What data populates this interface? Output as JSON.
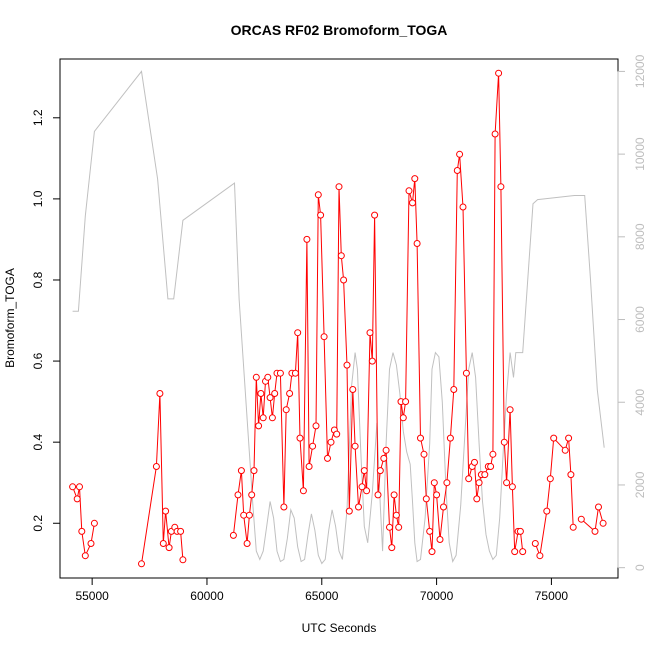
{
  "chart_data": {
    "type": "line",
    "title": "ORCAS RF02 Bromoform_TOGA",
    "xlabel": "UTC Seconds",
    "ylabel": "Bromoform_TOGA",
    "xlim": [
      53600,
      77900
    ],
    "ylim": [
      0.065,
      1.345
    ],
    "y2lim": [
      -250,
      12300
    ],
    "x_ticks": [
      55000,
      60000,
      65000,
      70000,
      75000
    ],
    "y_ticks": [
      0.2,
      0.4,
      0.6,
      0.8,
      1.0,
      1.2
    ],
    "y2_ticks": [
      0,
      2000,
      4000,
      6000,
      8000,
      10000,
      12000
    ],
    "grid": false,
    "legend": "none",
    "colors": {
      "bromoform": "#ff0000",
      "altitude": "#c0c0c0",
      "axis": "#000000",
      "right_axis": "#bdbdbd"
    },
    "series": [
      {
        "color": "#ff0000",
        "axis": "left",
        "marker": "open-circle",
        "segments": [
          [
            [
              54150,
              0.29
            ],
            [
              54350,
              0.26
            ],
            [
              54450,
              0.29
            ],
            [
              54550,
              0.18
            ],
            [
              54700,
              0.12
            ],
            [
              54950,
              0.15
            ],
            [
              55100,
              0.2
            ]
          ],
          [
            [
              57150,
              0.1
            ],
            [
              57800,
              0.34
            ],
            [
              57950,
              0.52
            ],
            [
              58100,
              0.15
            ],
            [
              58200,
              0.23
            ],
            [
              58350,
              0.14
            ],
            [
              58450,
              0.18
            ],
            [
              58600,
              0.19
            ],
            [
              58700,
              0.18
            ],
            [
              58850,
              0.18
            ],
            [
              58950,
              0.11
            ]
          ],
          [
            [
              61150,
              0.17
            ],
            [
              61350,
              0.27
            ],
            [
              61500,
              0.33
            ],
            [
              61600,
              0.22
            ],
            [
              61750,
              0.15
            ],
            [
              61850,
              0.22
            ],
            [
              61950,
              0.27
            ],
            [
              62050,
              0.33
            ],
            [
              62150,
              0.56
            ],
            [
              62250,
              0.44
            ],
            [
              62350,
              0.52
            ],
            [
              62450,
              0.46
            ],
            [
              62550,
              0.55
            ],
            [
              62650,
              0.56
            ],
            [
              62750,
              0.51
            ],
            [
              62850,
              0.46
            ],
            [
              62950,
              0.52
            ],
            [
              63050,
              0.57
            ],
            [
              63200,
              0.57
            ],
            [
              63350,
              0.24
            ],
            [
              63450,
              0.48
            ],
            [
              63600,
              0.52
            ],
            [
              63700,
              0.57
            ],
            [
              63850,
              0.57
            ],
            [
              63950,
              0.67
            ],
            [
              64050,
              0.41
            ],
            [
              64200,
              0.28
            ],
            [
              64350,
              0.9
            ],
            [
              64450,
              0.34
            ],
            [
              64600,
              0.39
            ],
            [
              64750,
              0.44
            ],
            [
              64850,
              1.01
            ],
            [
              64950,
              0.96
            ],
            [
              65100,
              0.66
            ],
            [
              65250,
              0.36
            ],
            [
              65400,
              0.4
            ],
            [
              65550,
              0.43
            ],
            [
              65650,
              0.42
            ],
            [
              65750,
              1.03
            ],
            [
              65850,
              0.86
            ],
            [
              65950,
              0.8
            ],
            [
              66100,
              0.59
            ],
            [
              66200,
              0.23
            ],
            [
              66350,
              0.53
            ],
            [
              66450,
              0.39
            ],
            [
              66600,
              0.24
            ],
            [
              66750,
              0.29
            ],
            [
              66850,
              0.33
            ],
            [
              66950,
              0.28
            ],
            [
              67100,
              0.67
            ],
            [
              67200,
              0.6
            ],
            [
              67300,
              0.96
            ],
            [
              67450,
              0.27
            ],
            [
              67550,
              0.33
            ],
            [
              67700,
              0.36
            ],
            [
              67800,
              0.38
            ],
            [
              67950,
              0.19
            ],
            [
              68050,
              0.14
            ],
            [
              68150,
              0.27
            ],
            [
              68250,
              0.22
            ],
            [
              68350,
              0.19
            ],
            [
              68450,
              0.5
            ],
            [
              68550,
              0.46
            ],
            [
              68650,
              0.5
            ],
            [
              68800,
              1.02
            ],
            [
              68950,
              0.99
            ],
            [
              69050,
              1.05
            ],
            [
              69150,
              0.89
            ],
            [
              69300,
              0.41
            ],
            [
              69450,
              0.37
            ],
            [
              69550,
              0.26
            ],
            [
              69700,
              0.18
            ],
            [
              69800,
              0.13
            ],
            [
              69900,
              0.3
            ],
            [
              70000,
              0.27
            ],
            [
              70150,
              0.16
            ],
            [
              70300,
              0.24
            ],
            [
              70450,
              0.3
            ],
            [
              70600,
              0.41
            ],
            [
              70750,
              0.53
            ],
            [
              70900,
              1.07
            ],
            [
              71000,
              1.11
            ],
            [
              71150,
              0.98
            ],
            [
              71300,
              0.57
            ],
            [
              71400,
              0.31
            ],
            [
              71550,
              0.34
            ],
            [
              71650,
              0.35
            ],
            [
              71750,
              0.26
            ],
            [
              71850,
              0.3
            ],
            [
              71950,
              0.32
            ],
            [
              72100,
              0.32
            ],
            [
              72250,
              0.34
            ],
            [
              72350,
              0.34
            ],
            [
              72450,
              0.37
            ],
            [
              72550,
              1.16
            ],
            [
              72700,
              1.31
            ],
            [
              72800,
              1.03
            ],
            [
              72950,
              0.4
            ],
            [
              73050,
              0.3
            ],
            [
              73200,
              0.48
            ],
            [
              73300,
              0.29
            ],
            [
              73400,
              0.13
            ],
            [
              73550,
              0.18
            ],
            [
              73650,
              0.18
            ],
            [
              73750,
              0.13
            ]
          ],
          [
            [
              74300,
              0.15
            ],
            [
              74500,
              0.12
            ],
            [
              74800,
              0.23
            ],
            [
              74950,
              0.31
            ],
            [
              75100,
              0.41
            ],
            [
              75600,
              0.38
            ],
            [
              75750,
              0.41
            ],
            [
              75850,
              0.32
            ],
            [
              75950,
              0.19
            ]
          ],
          [
            [
              76300,
              0.21
            ],
            [
              76900,
              0.18
            ],
            [
              77050,
              0.24
            ],
            [
              77250,
              0.2
            ]
          ]
        ]
      },
      {
        "color": "#c0c0c0",
        "axis": "right",
        "marker": "none",
        "points": [
          [
            54150,
            6200
          ],
          [
            54400,
            6200
          ],
          [
            54700,
            8500
          ],
          [
            55100,
            10550
          ],
          [
            57150,
            12000
          ],
          [
            57850,
            9400
          ],
          [
            58300,
            6500
          ],
          [
            58550,
            6500
          ],
          [
            58950,
            8400
          ],
          [
            61200,
            9300
          ],
          [
            61400,
            6500
          ],
          [
            61700,
            4000
          ],
          [
            62000,
            1500
          ],
          [
            62150,
            400
          ],
          [
            62300,
            200
          ],
          [
            62450,
            400
          ],
          [
            62600,
            1000
          ],
          [
            62750,
            1600
          ],
          [
            62900,
            1200
          ],
          [
            63050,
            400
          ],
          [
            63200,
            150
          ],
          [
            63350,
            200
          ],
          [
            63500,
            700
          ],
          [
            63650,
            1400
          ],
          [
            63800,
            1200
          ],
          [
            63950,
            500
          ],
          [
            64100,
            150
          ],
          [
            64250,
            200
          ],
          [
            64400,
            800
          ],
          [
            64550,
            1300
          ],
          [
            64700,
            900
          ],
          [
            64850,
            300
          ],
          [
            65000,
            100
          ],
          [
            65150,
            200
          ],
          [
            65300,
            900
          ],
          [
            65450,
            1400
          ],
          [
            65600,
            1000
          ],
          [
            65750,
            400
          ],
          [
            65900,
            200
          ],
          [
            66100,
            1400
          ],
          [
            66300,
            4400
          ],
          [
            66450,
            5200
          ],
          [
            66550,
            4800
          ],
          [
            66700,
            2800
          ],
          [
            66850,
            1000
          ],
          [
            67000,
            600
          ],
          [
            67200,
            1800
          ],
          [
            67400,
            3500
          ],
          [
            67550,
            1500
          ],
          [
            67650,
            400
          ],
          [
            67800,
            3000
          ],
          [
            67950,
            4800
          ],
          [
            68100,
            5200
          ],
          [
            68250,
            4900
          ],
          [
            68400,
            4200
          ],
          [
            68550,
            3300
          ],
          [
            68700,
            2800
          ],
          [
            68850,
            2500
          ],
          [
            68950,
            1600
          ],
          [
            69050,
            600
          ],
          [
            69150,
            150
          ],
          [
            69300,
            200
          ],
          [
            69500,
            1200
          ],
          [
            69700,
            3000
          ],
          [
            69800,
            4800
          ],
          [
            69950,
            5200
          ],
          [
            70100,
            5100
          ],
          [
            70250,
            4000
          ],
          [
            70400,
            2000
          ],
          [
            70550,
            600
          ],
          [
            70700,
            150
          ],
          [
            70850,
            300
          ],
          [
            71050,
            1500
          ],
          [
            71250,
            3400
          ],
          [
            71400,
            4800
          ],
          [
            71550,
            5200
          ],
          [
            71700,
            4600
          ],
          [
            71850,
            3000
          ],
          [
            72000,
            1600
          ],
          [
            72150,
            800
          ],
          [
            72300,
            400
          ],
          [
            72450,
            200
          ],
          [
            72600,
            300
          ],
          [
            72750,
            1200
          ],
          [
            72900,
            2800
          ],
          [
            73050,
            4200
          ],
          [
            73200,
            5200
          ],
          [
            73350,
            4600
          ],
          [
            73450,
            5200
          ],
          [
            73750,
            5200
          ],
          [
            74200,
            8800
          ],
          [
            74400,
            8900
          ],
          [
            76000,
            9000
          ],
          [
            76450,
            9000
          ],
          [
            76700,
            7000
          ],
          [
            77000,
            4300
          ],
          [
            77300,
            2900
          ]
        ]
      }
    ]
  }
}
